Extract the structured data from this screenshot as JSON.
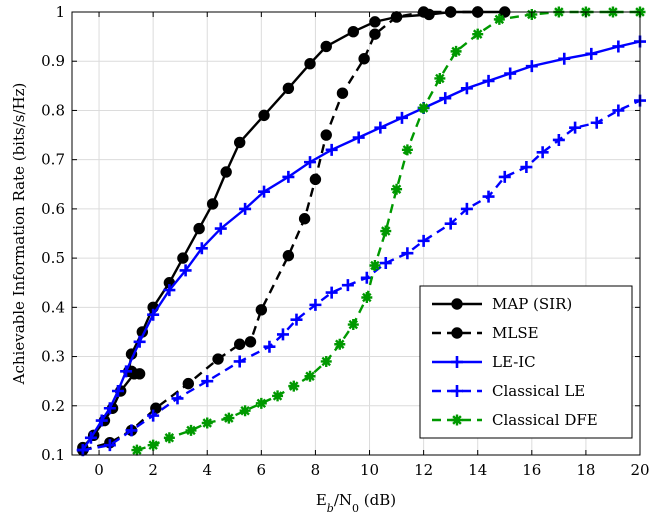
{
  "chart_data": {
    "type": "line",
    "title": "",
    "xlabel": "E_b/N_0 (dB)",
    "xlabel_parts": {
      "main": "E",
      "sub1": "b",
      "sep": "/N",
      "sub2": "0",
      "unit": " (dB)"
    },
    "ylabel": "Achievable Information Rate (bits/s/Hz)",
    "xlim": [
      -1,
      20
    ],
    "ylim": [
      0.1,
      1.0
    ],
    "xticks": [
      0,
      2,
      4,
      6,
      8,
      10,
      12,
      14,
      16,
      18,
      20
    ],
    "yticks": [
      0.1,
      0.2,
      0.3,
      0.4,
      0.5,
      0.6,
      0.7,
      0.8,
      0.9,
      1
    ],
    "xtick_labels": [
      "0",
      "2",
      "4",
      "6",
      "8",
      "10",
      "12",
      "14",
      "16",
      "18",
      "20"
    ],
    "ytick_labels": [
      "0.1",
      "0.2",
      "0.3",
      "0.4",
      "0.5",
      "0.6",
      "0.7",
      "0.8",
      "0.9",
      "1"
    ],
    "grid": true,
    "legend_position": "bottom-right",
    "series": [
      {
        "name": "MAP (SIR)",
        "color": "#000000",
        "dash": "solid",
        "marker": "circle",
        "points": [
          [
            -0.6,
            0.115
          ],
          [
            -0.2,
            0.14
          ],
          [
            0.2,
            0.17
          ],
          [
            0.5,
            0.195
          ],
          [
            0.8,
            0.23
          ],
          [
            1.3,
            0.265
          ],
          [
            1.5,
            0.265
          ],
          [
            1.2,
            0.27
          ],
          [
            1.1,
            0.27
          ],
          [
            1.2,
            0.305
          ],
          [
            1.6,
            0.35
          ],
          [
            2.0,
            0.4
          ],
          [
            2.6,
            0.45
          ],
          [
            3.1,
            0.5
          ],
          [
            3.7,
            0.56
          ],
          [
            4.2,
            0.61
          ],
          [
            4.7,
            0.675
          ],
          [
            5.2,
            0.735
          ],
          [
            6.1,
            0.79
          ],
          [
            7.0,
            0.845
          ],
          [
            7.8,
            0.895
          ],
          [
            8.4,
            0.93
          ],
          [
            9.4,
            0.96
          ],
          [
            10.2,
            0.98
          ],
          [
            11.0,
            0.99
          ],
          [
            12.2,
            0.995
          ],
          [
            13.0,
            1.0
          ],
          [
            14.0,
            1.0
          ],
          [
            15.0,
            1.0
          ]
        ]
      },
      {
        "name": "MLSE",
        "color": "#000000",
        "dash": "dashed",
        "marker": "circle",
        "points": [
          [
            -0.6,
            0.11
          ],
          [
            0.4,
            0.125
          ],
          [
            1.2,
            0.15
          ],
          [
            2.1,
            0.195
          ],
          [
            3.3,
            0.245
          ],
          [
            4.4,
            0.295
          ],
          [
            5.2,
            0.325
          ],
          [
            5.6,
            0.33
          ],
          [
            6.0,
            0.395
          ],
          [
            7.0,
            0.505
          ],
          [
            7.6,
            0.58
          ],
          [
            8.0,
            0.66
          ],
          [
            8.4,
            0.75
          ],
          [
            9.0,
            0.835
          ],
          [
            9.8,
            0.905
          ],
          [
            10.2,
            0.955
          ],
          [
            11.0,
            0.99
          ],
          [
            12.0,
            1.0
          ],
          [
            13.0,
            1.0
          ],
          [
            14.0,
            1.0
          ]
        ]
      },
      {
        "name": "LE-IC",
        "color": "#0000ff",
        "dash": "solid",
        "marker": "plus",
        "points": [
          [
            -0.6,
            0.11
          ],
          [
            -0.3,
            0.135
          ],
          [
            0.1,
            0.17
          ],
          [
            0.4,
            0.195
          ],
          [
            0.7,
            0.23
          ],
          [
            1.0,
            0.27
          ],
          [
            1.5,
            0.33
          ],
          [
            2.0,
            0.385
          ],
          [
            2.6,
            0.435
          ],
          [
            3.2,
            0.475
          ],
          [
            3.8,
            0.52
          ],
          [
            4.5,
            0.56
          ],
          [
            5.4,
            0.6
          ],
          [
            6.1,
            0.635
          ],
          [
            7.0,
            0.665
          ],
          [
            7.8,
            0.695
          ],
          [
            8.6,
            0.72
          ],
          [
            9.6,
            0.745
          ],
          [
            10.4,
            0.765
          ],
          [
            11.2,
            0.785
          ],
          [
            12.0,
            0.805
          ],
          [
            12.8,
            0.825
          ],
          [
            13.6,
            0.845
          ],
          [
            14.4,
            0.86
          ],
          [
            15.2,
            0.875
          ],
          [
            16.0,
            0.89
          ],
          [
            17.2,
            0.905
          ],
          [
            18.2,
            0.915
          ],
          [
            19.2,
            0.93
          ],
          [
            20.0,
            0.94
          ]
        ]
      },
      {
        "name": "Classical LE",
        "color": "#0000ff",
        "dash": "dashed",
        "marker": "plus",
        "points": [
          [
            -0.6,
            0.11
          ],
          [
            0.4,
            0.12
          ],
          [
            1.2,
            0.15
          ],
          [
            2.0,
            0.18
          ],
          [
            2.9,
            0.215
          ],
          [
            4.0,
            0.25
          ],
          [
            5.2,
            0.29
          ],
          [
            6.3,
            0.32
          ],
          [
            6.8,
            0.345
          ],
          [
            7.3,
            0.375
          ],
          [
            8.0,
            0.405
          ],
          [
            8.6,
            0.43
          ],
          [
            9.2,
            0.445
          ],
          [
            9.9,
            0.46
          ],
          [
            10.6,
            0.49
          ],
          [
            11.4,
            0.51
          ],
          [
            12.0,
            0.535
          ],
          [
            13.0,
            0.57
          ],
          [
            13.6,
            0.6
          ],
          [
            14.4,
            0.625
          ],
          [
            15.0,
            0.665
          ],
          [
            15.8,
            0.685
          ],
          [
            16.4,
            0.715
          ],
          [
            17.0,
            0.74
          ],
          [
            17.6,
            0.765
          ],
          [
            18.4,
            0.775
          ],
          [
            19.2,
            0.8
          ],
          [
            20.0,
            0.82
          ]
        ]
      },
      {
        "name": "Classical DFE",
        "color": "#009900",
        "dash": "dashed",
        "marker": "asterisk",
        "points": [
          [
            1.4,
            0.11
          ],
          [
            2.0,
            0.12
          ],
          [
            2.6,
            0.135
          ],
          [
            3.4,
            0.15
          ],
          [
            4.0,
            0.165
          ],
          [
            4.8,
            0.175
          ],
          [
            5.4,
            0.19
          ],
          [
            6.0,
            0.205
          ],
          [
            6.6,
            0.22
          ],
          [
            7.2,
            0.24
          ],
          [
            7.8,
            0.26
          ],
          [
            8.4,
            0.29
          ],
          [
            8.9,
            0.325
          ],
          [
            9.4,
            0.365
          ],
          [
            9.9,
            0.42
          ],
          [
            10.2,
            0.485
          ],
          [
            10.6,
            0.555
          ],
          [
            11.0,
            0.64
          ],
          [
            11.4,
            0.72
          ],
          [
            12.0,
            0.805
          ],
          [
            12.6,
            0.865
          ],
          [
            13.2,
            0.92
          ],
          [
            14.0,
            0.955
          ],
          [
            14.8,
            0.985
          ],
          [
            16.0,
            0.995
          ],
          [
            17.0,
            1.0
          ],
          [
            18.0,
            1.0
          ],
          [
            19.0,
            1.0
          ],
          [
            20.0,
            1.0
          ]
        ]
      }
    ]
  }
}
